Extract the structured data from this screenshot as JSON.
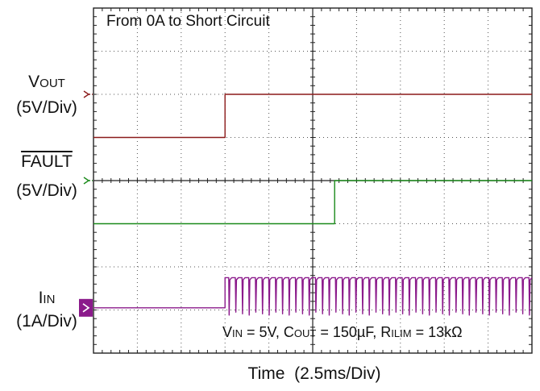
{
  "chart_data": {
    "type": "line",
    "title": "From 0A to Short Circuit",
    "xlabel": "Time",
    "x_scale": "(2.5ms/Div)",
    "x_divisions": 10,
    "y_divisions": 8,
    "grid": true,
    "x_unit": "div",
    "series": [
      {
        "name": "VOUT",
        "label_main": "V",
        "label_sub": "OUT",
        "scale": "(5V/Div)",
        "color": "#8b1a1a",
        "ground_div": 2.0,
        "points": [
          [
            0,
            3.0
          ],
          [
            3.0,
            3.0
          ],
          [
            3.0,
            2.0
          ],
          [
            10,
            2.0
          ]
        ]
      },
      {
        "name": "FAULT",
        "label_main": "FAULT",
        "overline": true,
        "scale": "(5V/Div)",
        "color": "#1a8a1a",
        "ground_div": 4.0,
        "points": [
          [
            0,
            5.0
          ],
          [
            5.5,
            5.0
          ],
          [
            5.5,
            4.0
          ],
          [
            10,
            4.0
          ]
        ]
      },
      {
        "name": "IIN",
        "label_main": "I",
        "label_sub": "IN",
        "scale": "(1A/Div)",
        "color": "#8b1a8b",
        "ground_div": 6.95,
        "step_x": 3.0,
        "high_level": 6.25,
        "pulse_low": 7.0,
        "pulse_count": 46
      }
    ],
    "conditions": {
      "vin": "V",
      "vin_sub": "IN",
      "vin_val": " = 5V, C",
      "cout_sub": "OUT",
      "cout_val": " = 150µF, R",
      "rilim_sub": "ILIM",
      "rilim_val": " = 13kΩ"
    }
  }
}
